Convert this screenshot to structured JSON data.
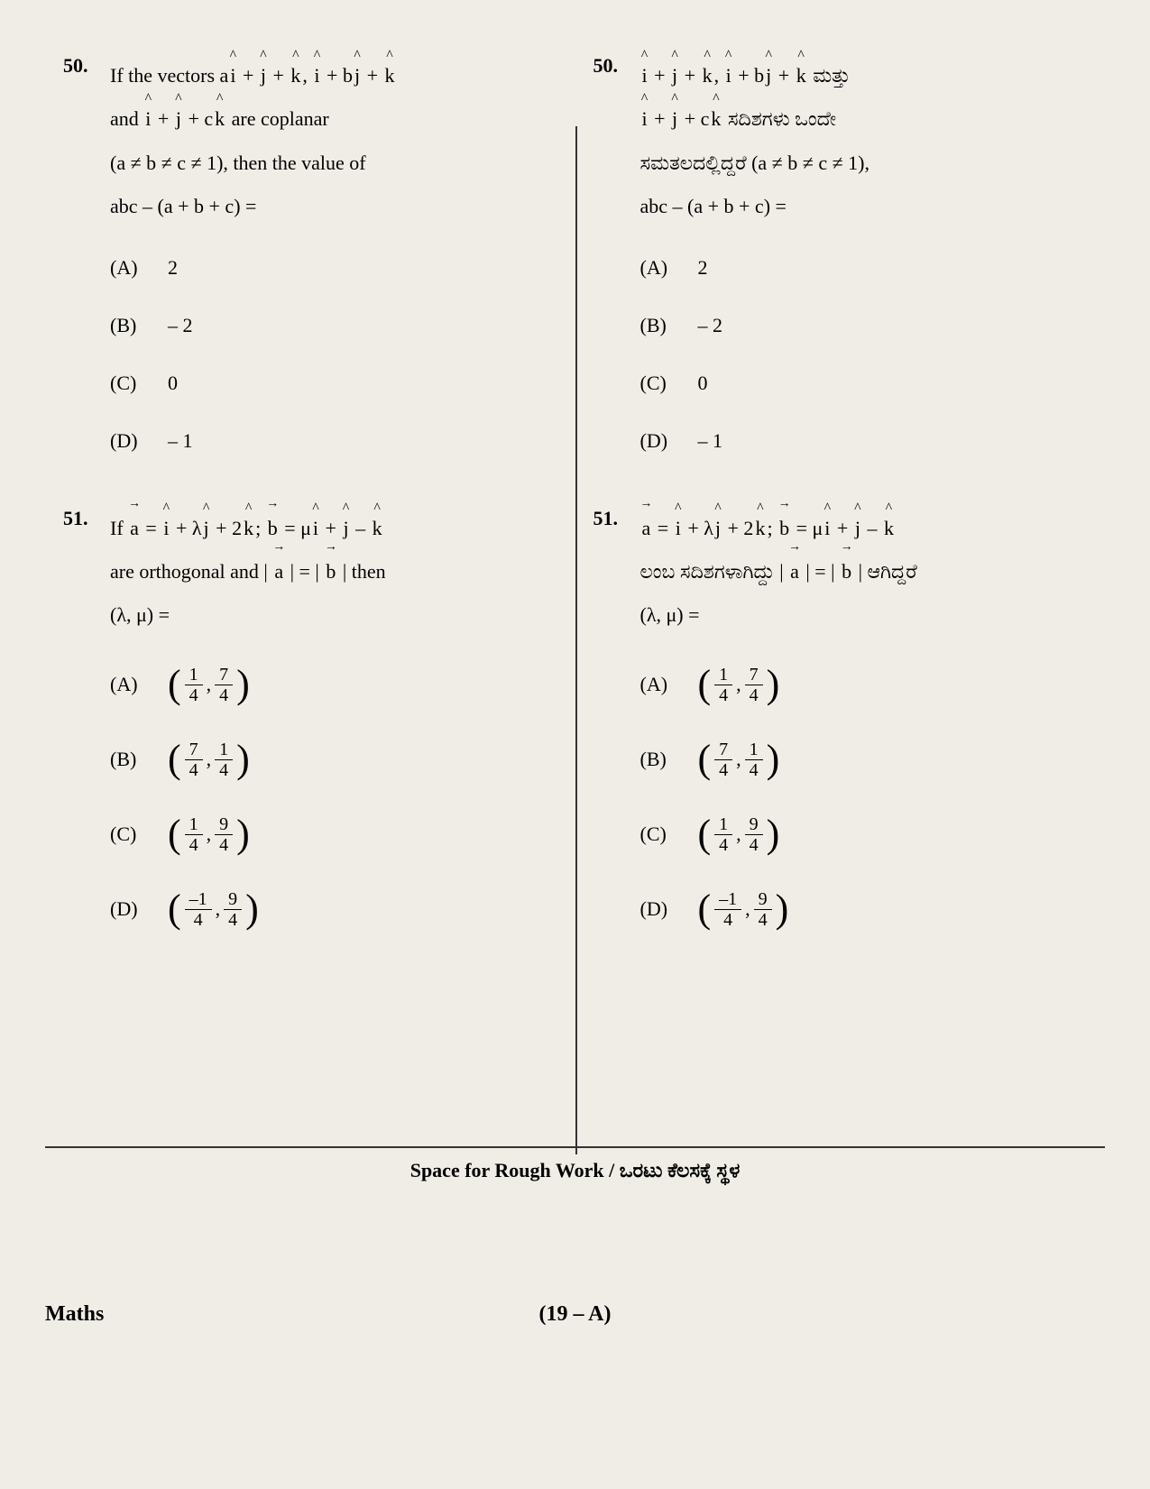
{
  "page": {
    "subject": "Maths",
    "pageNumber": "(19 – A)",
    "roughWorkLabel": "Space for Rough Work / ಒರಟು ಕೆಲಸಕ್ಕೆ ಸ್ಥಳ"
  },
  "left": {
    "q50": {
      "number": "50.",
      "line1_prefix": "If the vectors a",
      "line1_mid1": " + ",
      "line1_mid2": " + ",
      "line1_comma": ",   ",
      "line1_mid3": " + b",
      "line1_mid4": " + ",
      "line2_prefix": "and    ",
      "line2_mid1": " + ",
      "line2_mid2": " + c",
      "line2_suffix": "     are    coplanar",
      "line3": "(a ≠ b ≠ c ≠ 1),   then   the   value   of",
      "line4": "abc – (a + b + c) =",
      "i": "i",
      "j": "j",
      "k": "k",
      "optA_label": "(A)",
      "optA": "2",
      "optB_label": "(B)",
      "optB": "– 2",
      "optC_label": "(C)",
      "optC": "0",
      "optD_label": "(D)",
      "optD": "– 1"
    },
    "q51": {
      "number": "51.",
      "line1_prefix": "If  ",
      "a_var": "a",
      "eq": " = ",
      "plus_lambda": " + λ",
      "plus_2": " + 2",
      "semi": ";   ",
      "b_var": "b",
      "eq2": " = μ",
      "plus": " + ",
      "minus": " – ",
      "i": "i",
      "j": "j",
      "k": "k",
      "line2_prefix": "are orthogonal and | ",
      "line2_mid": " | = | ",
      "line2_suffix": " |  then",
      "line3": "(λ, μ) =",
      "optA_label": "(A)",
      "optB_label": "(B)",
      "optC_label": "(C)",
      "optD_label": "(D)",
      "frac_1": "1",
      "frac_4": "4",
      "frac_7": "7",
      "frac_9": "9",
      "frac_m1": "–1",
      "comma": ", "
    }
  },
  "right": {
    "q50": {
      "number": "50.",
      "line1_mid1": " + ",
      "line1_mid2": " + ",
      "line1_comma": ", ",
      "line1_mid3": " + b",
      "line1_mid4": " + ",
      "line1_suffix": "  ಮತ್ತು",
      "line2_mid1": " + ",
      "line2_mid2": " + c",
      "line2_suffix": "   ಸದಿಶಗಳು ಒಂದೇ",
      "line3": "ಸಮತಲದಲ್ಲಿದ್ದರೆ (a ≠ b ≠ c ≠ 1),",
      "line4": "abc – (a + b + c) =",
      "i": "i",
      "j": "j",
      "k": "k",
      "optA_label": "(A)",
      "optA": "2",
      "optB_label": "(B)",
      "optB": "– 2",
      "optC_label": "(C)",
      "optC": "0",
      "optD_label": "(D)",
      "optD": "– 1"
    },
    "q51": {
      "number": "51.",
      "a_var": "a",
      "eq": " = ",
      "plus_lambda": " + λ",
      "plus_2": " + 2",
      "semi": ";   ",
      "b_var": "b",
      "eq2": " = μ",
      "plus": " + ",
      "minus": " – ",
      "i": "i",
      "j": "j",
      "k": "k",
      "line2_prefix": "ಲಂಬ ಸದಿಶಗಳಾಗಿದ್ದು  | ",
      "line2_mid": " | = | ",
      "line2_suffix": " |   ಆಗಿದ್ದರೆ",
      "line3": "(λ, μ) =",
      "optA_label": "(A)",
      "optB_label": "(B)",
      "optC_label": "(C)",
      "optD_label": "(D)",
      "frac_1": "1",
      "frac_4": "4",
      "frac_7": "7",
      "frac_9": "9",
      "frac_m1": "–1",
      "comma": ", "
    }
  }
}
